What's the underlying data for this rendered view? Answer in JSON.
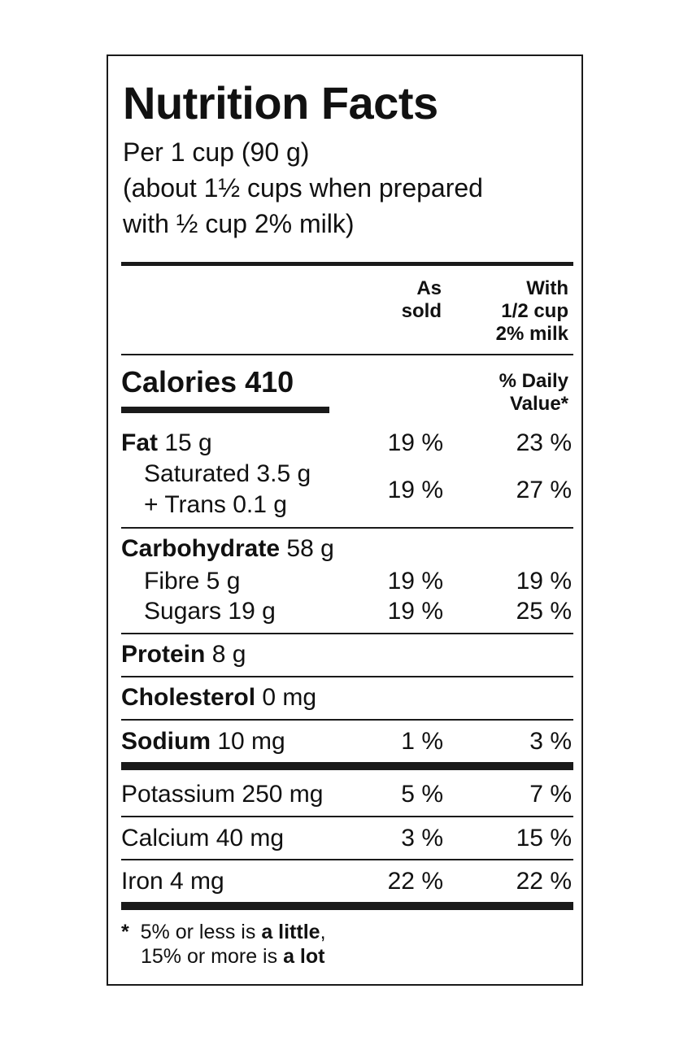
{
  "label": {
    "title": "Nutrition Facts",
    "serving_lines": [
      "Per 1 cup (90 g)",
      "(about 1½ cups when prepared",
      "with ½ cup 2% milk)"
    ],
    "col_as_sold": [
      "As",
      "sold"
    ],
    "col_with_milk": [
      "With",
      "1/2 cup",
      "2% milk"
    ],
    "calories_label": "Calories 410",
    "dv_header": [
      "% Daily",
      "Value*"
    ],
    "fat": {
      "name": "Fat",
      "amount": " 15 g",
      "as_sold": "19 %",
      "with_milk": "23 %"
    },
    "saturated": {
      "line1": "Saturated 3.5 g",
      "line2": "+ Trans 0.1 g",
      "as_sold": "19 %",
      "with_milk": "27 %"
    },
    "carbohydrate": {
      "name": "Carbohydrate",
      "amount": " 58 g"
    },
    "fibre": {
      "text": "Fibre 5 g",
      "as_sold": "19 %",
      "with_milk": "19 %"
    },
    "sugars": {
      "text": "Sugars 19 g",
      "as_sold": "19 %",
      "with_milk": "25 %"
    },
    "protein": {
      "name": "Protein",
      "amount": " 8 g"
    },
    "cholesterol": {
      "name": "Cholesterol",
      "amount": " 0 mg"
    },
    "sodium": {
      "name": "Sodium",
      "amount": " 10 mg",
      "as_sold": "1 %",
      "with_milk": "3 %"
    },
    "potassium": {
      "text": "Potassium 250 mg",
      "as_sold": "5 %",
      "with_milk": "7 %"
    },
    "calcium": {
      "text": "Calcium 40 mg",
      "as_sold": "3 %",
      "with_milk": "15 %"
    },
    "iron": {
      "text": "Iron 4 mg",
      "as_sold": "22 %",
      "with_milk": "22 %"
    },
    "footnote": {
      "star": "*",
      "line1_pre": "5% or less is ",
      "line1_bold": "a little",
      "line1_post": ",",
      "line2_pre": "15% or more is ",
      "line2_bold": "a lot"
    }
  }
}
